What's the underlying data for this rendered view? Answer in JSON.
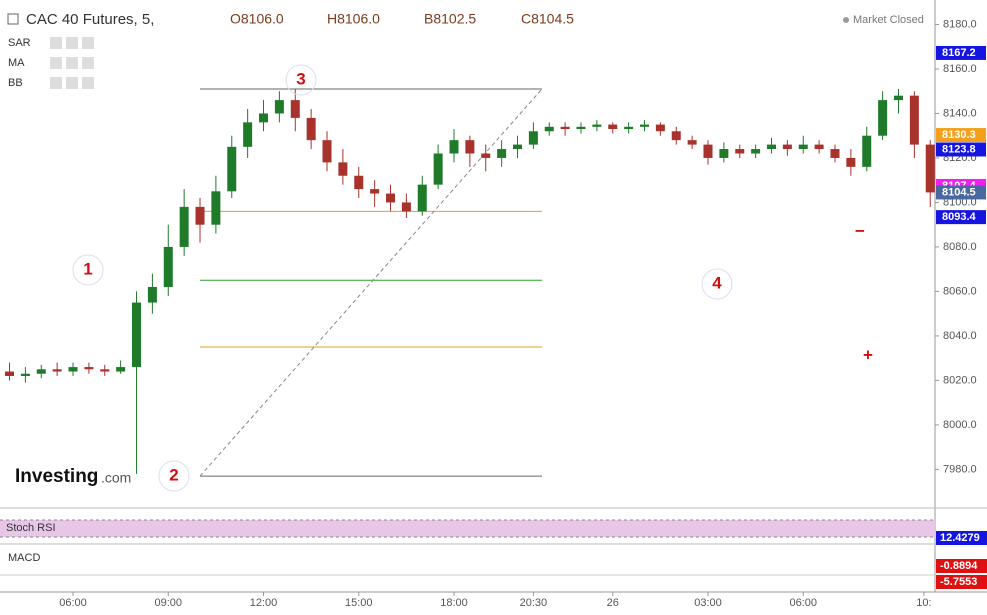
{
  "chart_data": {
    "type": "candlestick",
    "title": "CAC 40 Futures, 5,",
    "quote": [
      "O8106.0",
      "H8106.0",
      "B8102.5",
      "C8104.5"
    ],
    "indicators": [
      "SAR",
      "MA",
      "BB"
    ],
    "status": "Market Closed",
    "logo": [
      "Investing",
      ".com"
    ],
    "x": [
      4.0,
      4.5,
      5.0,
      5.5,
      6.0,
      6.5,
      7.0,
      7.5,
      8.0,
      8.5,
      9.0,
      9.5,
      10.0,
      10.5,
      11.0,
      11.5,
      12.0,
      12.5,
      13.0,
      13.5,
      14.0,
      14.5,
      15.0,
      15.5,
      16.0,
      16.5,
      17.0,
      17.5,
      18.0,
      18.5,
      19.0,
      19.5,
      20.0,
      20.5,
      21.0,
      21.5,
      22.0,
      22.5,
      23.0,
      23.5,
      24.0,
      24.5,
      25.0,
      25.5,
      26.0,
      26.5,
      27.0,
      27.5,
      28.0,
      28.5,
      29.0,
      29.5,
      30.0,
      30.5,
      31.0,
      31.5,
      32.0,
      32.5,
      33.0
    ],
    "open": [
      8024,
      8022,
      8023,
      8025,
      8024,
      8026,
      8025,
      8024,
      8026,
      8055,
      8062,
      8080,
      8098,
      8090,
      8105,
      8125,
      8136,
      8140,
      8146,
      8138,
      8128,
      8118,
      8112,
      8106,
      8104,
      8100,
      8096,
      8108,
      8122,
      8128,
      8122,
      8120,
      8124,
      8126,
      8132,
      8134,
      8133,
      8134,
      8135,
      8133,
      8134,
      8135,
      8132,
      8128,
      8126,
      8120,
      8124,
      8122,
      8124,
      8126,
      8124,
      8126,
      8124,
      8120,
      8116,
      8130,
      8146,
      8148,
      8126
    ],
    "high": [
      8028,
      8026,
      8027,
      8028,
      8028,
      8028,
      8027,
      8029,
      8060,
      8068,
      8090,
      8106,
      8102,
      8112,
      8130,
      8142,
      8146,
      8150,
      8151,
      8142,
      8132,
      8124,
      8116,
      8110,
      8108,
      8104,
      8112,
      8126,
      8133,
      8130,
      8126,
      8128,
      8130,
      8136,
      8136,
      8136,
      8136,
      8137,
      8136,
      8136,
      8137,
      8136,
      8134,
      8130,
      8128,
      8127,
      8126,
      8126,
      8129,
      8128,
      8130,
      8128,
      8126,
      8124,
      8134,
      8150,
      8151,
      8150,
      8128
    ],
    "low": [
      8020,
      8019,
      8021,
      8022,
      8022,
      8023,
      8022,
      8023,
      7978,
      8050,
      8058,
      8076,
      8082,
      8086,
      8102,
      8120,
      8132,
      8136,
      8132,
      8124,
      8114,
      8108,
      8102,
      8098,
      8096,
      8093,
      8094,
      8106,
      8118,
      8116,
      8114,
      8116,
      8120,
      8124,
      8130,
      8130,
      8131,
      8132,
      8131,
      8131,
      8132,
      8130,
      8126,
      8124,
      8117,
      8118,
      8120,
      8120,
      8122,
      8121,
      8122,
      8122,
      8118,
      8112,
      8114,
      8128,
      8140,
      8120,
      8098
    ],
    "close": [
      8022,
      8023,
      8025,
      8024,
      8026,
      8025,
      8024,
      8026,
      8055,
      8062,
      8080,
      8098,
      8090,
      8105,
      8125,
      8136,
      8140,
      8146,
      8138,
      8128,
      8118,
      8112,
      8106,
      8104,
      8100,
      8096,
      8108,
      8122,
      8128,
      8122,
      8120,
      8124,
      8126,
      8132,
      8134,
      8133,
      8134,
      8135,
      8133,
      8134,
      8135,
      8132,
      8128,
      8126,
      8120,
      8124,
      8122,
      8124,
      8126,
      8124,
      8126,
      8124,
      8120,
      8116,
      8130,
      8146,
      8148,
      8126,
      8104.5
    ],
    "up_color": "#1f7a2a",
    "down_color": "#a8322c",
    "xlim": [
      3.7,
      33.15
    ],
    "xticks": [
      {
        "value": 6,
        "label": "06:00"
      },
      {
        "value": 9,
        "label": "09:00"
      },
      {
        "value": 12,
        "label": "12:00"
      },
      {
        "value": 15,
        "label": "15:00"
      },
      {
        "value": 18,
        "label": "18:00"
      },
      {
        "value": 20.5,
        "label": "20:30"
      },
      {
        "value": 23,
        "label": "26"
      },
      {
        "value": 26,
        "label": "03:00"
      },
      {
        "value": 29,
        "label": "06:00"
      },
      {
        "value": 32.8,
        "label": "10:"
      }
    ],
    "ylim": [
      7964,
      8191
    ],
    "yticks": [
      {
        "value": 7980,
        "label": "7980.0"
      },
      {
        "value": 8000,
        "label": "8000.0"
      },
      {
        "value": 8020,
        "label": "8020.0"
      },
      {
        "value": 8040,
        "label": "8040.0"
      },
      {
        "value": 8060,
        "label": "8060.0"
      },
      {
        "value": 8080,
        "label": "8080.0"
      },
      {
        "value": 8100,
        "label": "8100.0"
      },
      {
        "value": 8120,
        "label": "8120.0"
      },
      {
        "value": 8140,
        "label": "8140.0"
      },
      {
        "value": 8160,
        "label": "8160.0"
      },
      {
        "value": 8180,
        "label": "8180.0"
      }
    ],
    "price_tags": [
      {
        "value": 8167.2,
        "color": "#1515e0"
      },
      {
        "value": 8130.3,
        "color": "#f5a01a"
      },
      {
        "value": 8123.8,
        "color": "#1515e0"
      },
      {
        "value": 8107.4,
        "color": "#f01ef0"
      },
      {
        "value": 8104.5,
        "color": "#4a68a0"
      },
      {
        "value": 8093.4,
        "color": "#1515e0"
      }
    ],
    "levels": [
      {
        "value": 8151,
        "color": "#666666"
      },
      {
        "value": 8096,
        "color": "#e0a020"
      },
      {
        "value": 8065,
        "color": "#2ca02c"
      },
      {
        "value": 8035,
        "color": "#e0a020"
      },
      {
        "value": 7977,
        "color": "#666666"
      }
    ],
    "annotations": [
      "1",
      "2",
      "3",
      "4",
      "+",
      "−"
    ],
    "stoch_rsi": {
      "label": "Stoch RSI",
      "value": 12.4279,
      "color": "#1515e0"
    },
    "macd": {
      "label": "MACD",
      "values": [
        -0.8894,
        -5.7553
      ],
      "color": "#e01010"
    }
  }
}
